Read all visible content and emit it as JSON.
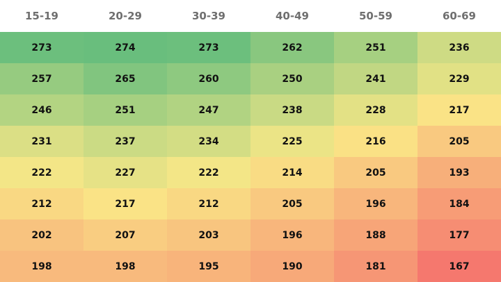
{
  "table": {
    "header": [
      "15-19",
      "20-29",
      "30-39",
      "40-49",
      "50-59",
      "60-69"
    ],
    "rows": [
      [
        273,
        274,
        273,
        262,
        251,
        236
      ],
      [
        257,
        265,
        260,
        250,
        241,
        229
      ],
      [
        246,
        251,
        247,
        238,
        228,
        217
      ],
      [
        231,
        237,
        234,
        225,
        216,
        205
      ],
      [
        222,
        227,
        222,
        214,
        205,
        193
      ],
      [
        212,
        217,
        212,
        205,
        196,
        184
      ],
      [
        202,
        207,
        203,
        196,
        188,
        177
      ],
      [
        198,
        198,
        195,
        190,
        181,
        167
      ]
    ]
  }
}
